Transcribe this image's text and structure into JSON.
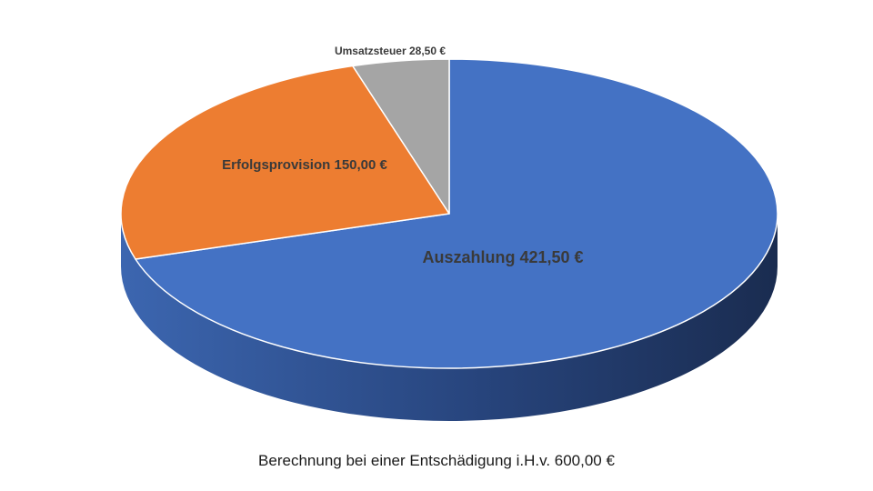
{
  "chart_data": {
    "type": "pie",
    "style": "3d",
    "total": 600.0,
    "slices": [
      {
        "name": "Auszahlung",
        "value": 421.5,
        "label": "Auszahlung 421,50 €",
        "color": "#4472C4"
      },
      {
        "name": "Erfolgsprovision",
        "value": 150.0,
        "label": "Erfolgsprovision 150,00 €",
        "color": "#ED7D31"
      },
      {
        "name": "Umsatzsteuer",
        "value": 28.5,
        "label": "Umsatzsteuer 28,50 €",
        "color": "#A5A5A5"
      }
    ],
    "caption": "Berechnung bei einer Entschädigung i.H.v. 600,00 €"
  }
}
